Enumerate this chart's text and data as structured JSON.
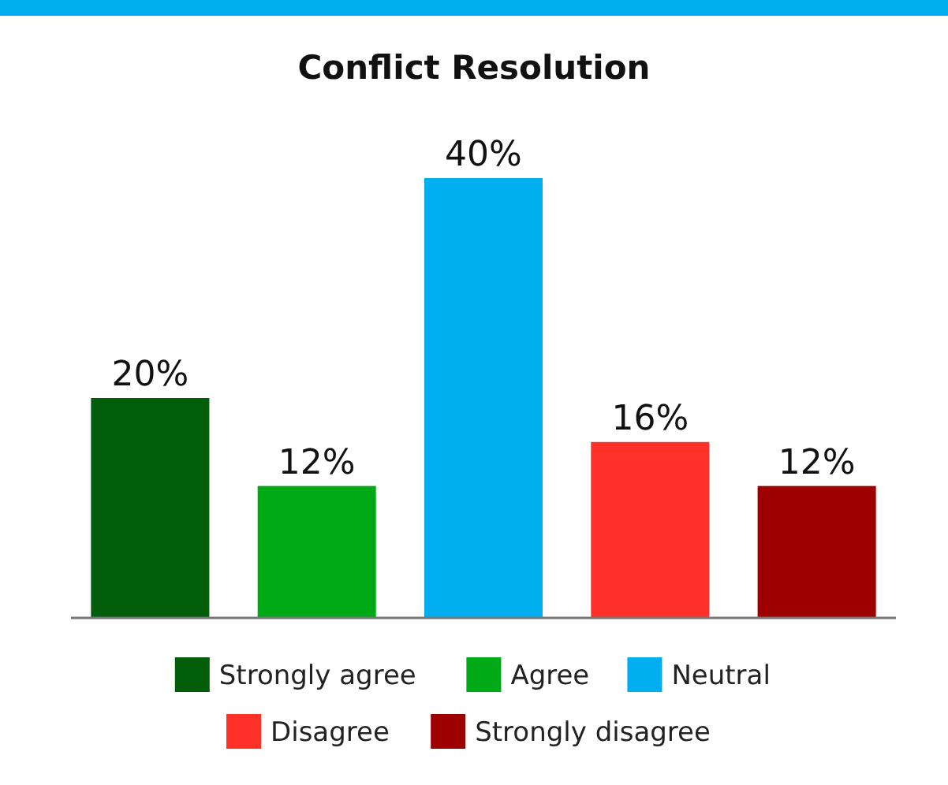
{
  "chart_data": {
    "type": "bar",
    "title": "Conflict Resolution",
    "categories": [
      null,
      null,
      null,
      null,
      null
    ],
    "series": [
      {
        "name": "Strongly agree",
        "color": "#005e0b",
        "values": [
          20,
          null,
          null,
          null,
          null
        ],
        "value_labels": [
          "20%",
          null,
          null,
          null,
          null
        ]
      },
      {
        "name": "Agree",
        "color": "#00a916",
        "values": [
          null,
          12,
          null,
          null,
          null
        ],
        "value_labels": [
          null,
          "12%",
          null,
          null,
          null
        ]
      },
      {
        "name": "Neutral",
        "color": "#00aeef",
        "values": [
          null,
          null,
          40,
          null,
          null
        ],
        "value_labels": [
          null,
          null,
          "40%",
          null,
          null
        ]
      },
      {
        "name": "Disagree",
        "color": "#ff3129",
        "values": [
          null,
          null,
          null,
          16,
          null
        ],
        "value_labels": [
          null,
          null,
          null,
          "16%",
          null
        ]
      },
      {
        "name": "Strongly disagree",
        "color": "#9e0000",
        "values": [
          null,
          null,
          null,
          null,
          12
        ],
        "value_labels": [
          null,
          null,
          null,
          null,
          "12%"
        ]
      }
    ],
    "stacked": true,
    "legend": "bottom"
  }
}
